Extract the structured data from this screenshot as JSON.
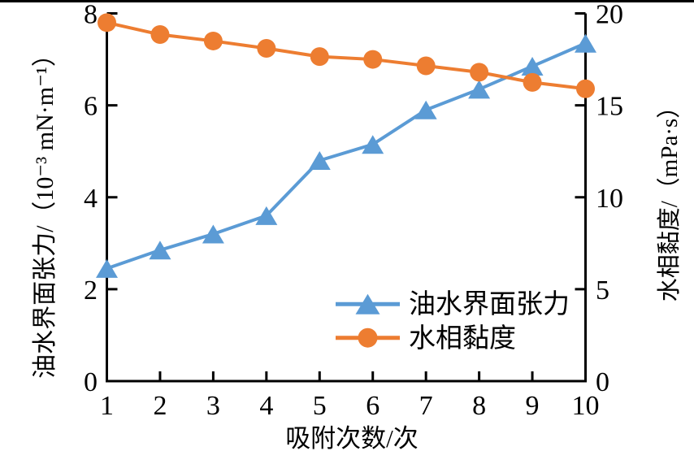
{
  "page": {
    "background": "#ffffff",
    "top_border_color": "#000000"
  },
  "chart_data": {
    "type": "line",
    "title": "",
    "x_label": "吸附次数/次",
    "x": [
      1,
      2,
      3,
      4,
      5,
      6,
      7,
      8,
      9,
      10
    ],
    "x_tick_labels": [
      "1",
      "2",
      "3",
      "4",
      "5",
      "6",
      "7",
      "8",
      "9",
      "10"
    ],
    "left_axis": {
      "label": "油水界面张力/（10⁻³ mN·m⁻¹）",
      "lim": [
        0,
        8
      ],
      "ticks": [
        0,
        2,
        4,
        6,
        8
      ],
      "tick_labels": [
        "0",
        "2",
        "4",
        "6",
        "8"
      ]
    },
    "right_axis": {
      "label": "水相黏度/（mPa·s）",
      "lim": [
        0,
        20
      ],
      "ticks": [
        0,
        5,
        10,
        15,
        20
      ],
      "tick_labels": [
        "0",
        "5",
        "10",
        "15",
        "20"
      ]
    },
    "series": [
      {
        "name": "油水界面张力",
        "axis": "left",
        "color": "#5B9BD5",
        "marker": "triangle",
        "values": [
          2.45,
          2.85,
          3.2,
          3.6,
          4.8,
          5.15,
          5.9,
          6.35,
          6.85,
          7.35
        ]
      },
      {
        "name": "水相黏度",
        "axis": "right",
        "color": "#ED7D31",
        "marker": "circle",
        "values": [
          19.5,
          18.85,
          18.5,
          18.1,
          17.65,
          17.5,
          17.15,
          16.8,
          16.25,
          15.9
        ]
      }
    ],
    "legend": {
      "position": "inside lower right",
      "entries": [
        "油水界面张力",
        "水相黏度"
      ]
    },
    "grid": false,
    "axis_color": "#000000"
  }
}
